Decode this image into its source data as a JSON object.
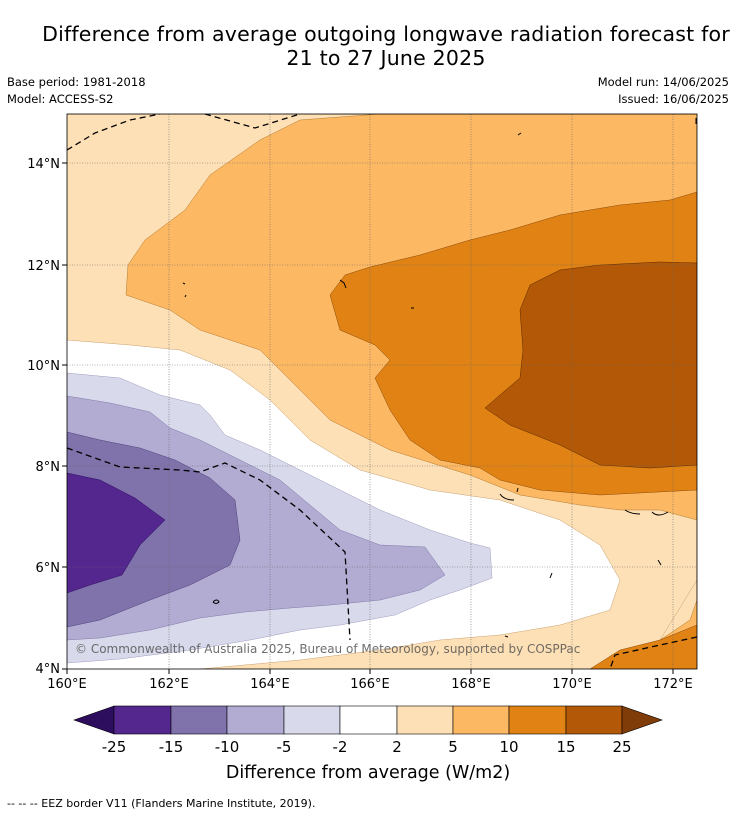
{
  "title": {
    "line1": "Difference from average outgoing longwave radiation forecast for",
    "line2": "21 to 27 June 2025"
  },
  "meta": {
    "base_period": "Base period: 1981-2018",
    "model": "Model: ACCESS-S2",
    "model_run": "Model run: 14/06/2025",
    "issued": "Issued: 16/06/2025"
  },
  "map": {
    "lon_ticks": [
      "160°E",
      "162°E",
      "164°E",
      "166°E",
      "168°E",
      "170°E",
      "172°E"
    ],
    "lat_ticks": [
      "14°N",
      "12°N",
      "10°N",
      "8°N",
      "6°N",
      "4°N"
    ],
    "copyright": "© Commonwealth of Australia 2025, Bureau of Meteorology, supported by COSPPac",
    "grid": true
  },
  "colorbar": {
    "ticks": [
      "-25",
      "-15",
      "-10",
      "-5",
      "-2",
      "2",
      "5",
      "10",
      "15",
      "25"
    ],
    "label": "Difference from average (W/m2)",
    "colors": {
      "below_min": "#2d0e5e",
      "n25_n15": "#54278f",
      "n15_n10": "#8073ac",
      "n10_n5": "#b2abd2",
      "n5_n2": "#d8daeb",
      "n2_2": "#ffffff",
      "2_5": "#fee0b6",
      "5_10": "#fdb863",
      "10_15": "#e08214",
      "15_25": "#b35806",
      "above_max": "#7f3b08"
    }
  },
  "footer": {
    "eez_legend": "--  --  -- EEZ border V11 (Flanders Marine Institute, 2019)."
  }
}
